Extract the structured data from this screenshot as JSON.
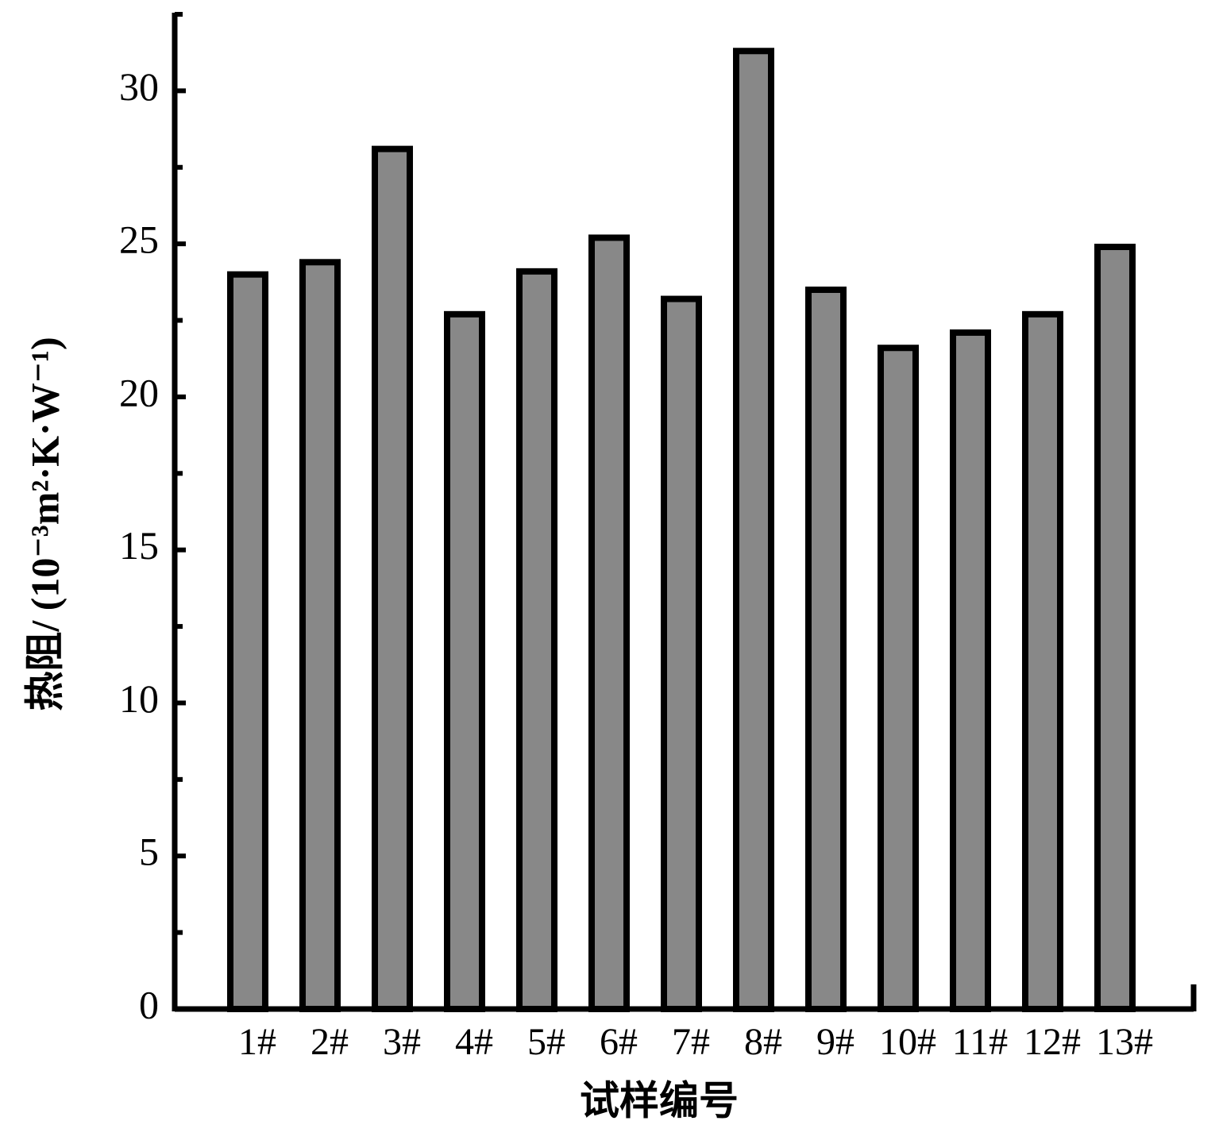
{
  "chart_data": {
    "type": "bar",
    "xlabel": "试样编号",
    "ylabel": "热阻/ (10⁻³m²·K·W⁻¹)",
    "categories": [
      "1#",
      "2#",
      "3#",
      "4#",
      "5#",
      "6#",
      "7#",
      "8#",
      "9#",
      "10#",
      "11#",
      "12#",
      "13#"
    ],
    "values": [
      24.0,
      24.4,
      28.1,
      22.7,
      24.1,
      25.2,
      23.2,
      31.3,
      23.5,
      21.6,
      22.1,
      22.7,
      24.9
    ],
    "color": "#888888",
    "ylim": [
      0,
      32.5
    ],
    "yticks": [
      0,
      5,
      10,
      15,
      20,
      25,
      30
    ],
    "yminorticks": [
      2.5,
      7.5,
      12.5,
      17.5,
      22.5,
      27.5,
      32.5
    ]
  }
}
